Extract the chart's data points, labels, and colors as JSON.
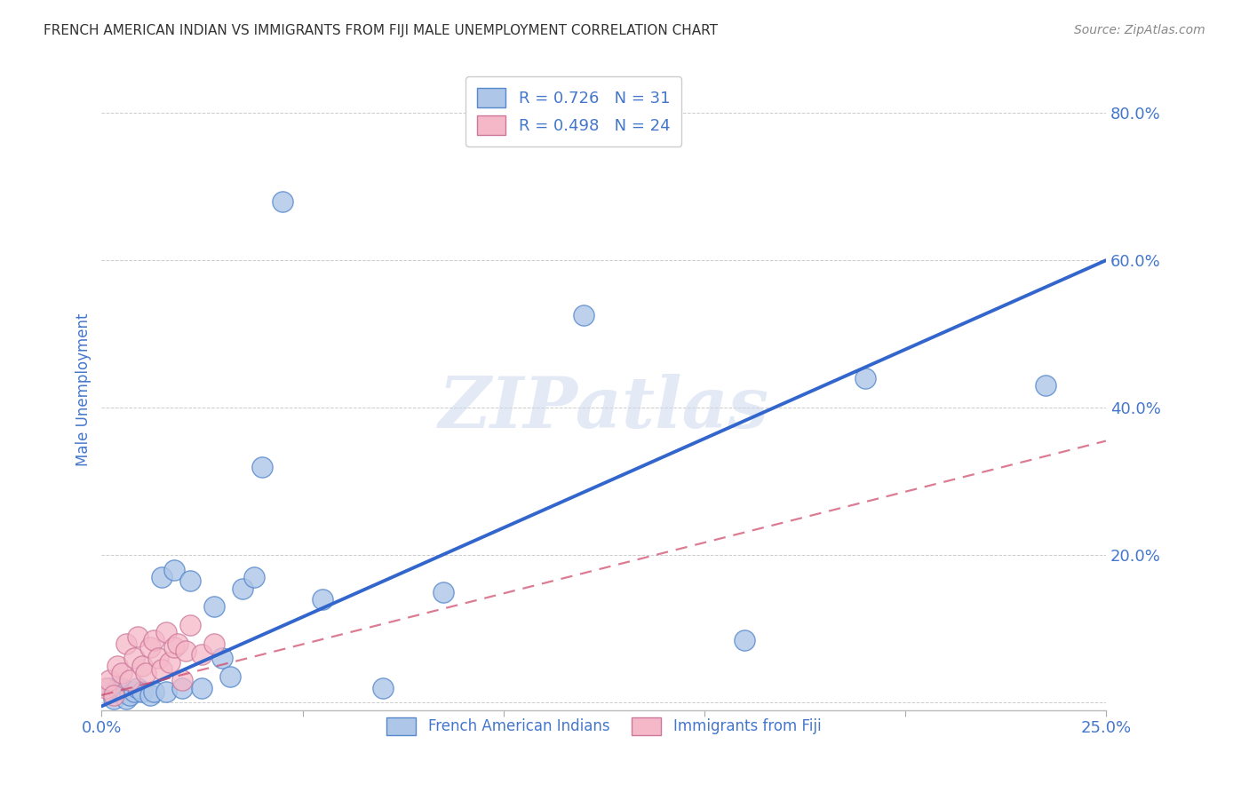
{
  "title": "FRENCH AMERICAN INDIAN VS IMMIGRANTS FROM FIJI MALE UNEMPLOYMENT CORRELATION CHART",
  "source": "Source: ZipAtlas.com",
  "ylabel": "Male Unemployment",
  "ytick_values": [
    0.0,
    0.2,
    0.4,
    0.6,
    0.8
  ],
  "ytick_labels": [
    "",
    "20.0%",
    "40.0%",
    "60.0%",
    "80.0%"
  ],
  "xlim": [
    0.0,
    0.25
  ],
  "ylim": [
    -0.01,
    0.86
  ],
  "blue_R": 0.726,
  "blue_N": 31,
  "pink_R": 0.498,
  "pink_N": 24,
  "blue_color": "#aec6e8",
  "blue_edge_color": "#5588cc",
  "blue_line_color": "#3366cc",
  "pink_color": "#f5b8c8",
  "pink_edge_color": "#cc7799",
  "pink_line_color": "#cc4466",
  "watermark_text": "ZIPatlas",
  "blue_points_x": [
    0.002,
    0.003,
    0.004,
    0.005,
    0.006,
    0.007,
    0.008,
    0.009,
    0.01,
    0.012,
    0.013,
    0.015,
    0.016,
    0.018,
    0.02,
    0.022,
    0.025,
    0.028,
    0.03,
    0.032,
    0.035,
    0.038,
    0.04,
    0.045,
    0.055,
    0.07,
    0.085,
    0.12,
    0.16,
    0.19,
    0.235
  ],
  "blue_points_y": [
    0.02,
    0.005,
    0.02,
    0.02,
    0.005,
    0.01,
    0.015,
    0.02,
    0.015,
    0.01,
    0.015,
    0.17,
    0.015,
    0.18,
    0.02,
    0.165,
    0.02,
    0.13,
    0.06,
    0.035,
    0.155,
    0.17,
    0.32,
    0.68,
    0.14,
    0.02,
    0.15,
    0.525,
    0.085,
    0.44,
    0.43
  ],
  "pink_points_x": [
    0.001,
    0.002,
    0.003,
    0.004,
    0.005,
    0.006,
    0.007,
    0.008,
    0.009,
    0.01,
    0.011,
    0.012,
    0.013,
    0.014,
    0.015,
    0.016,
    0.017,
    0.018,
    0.019,
    0.02,
    0.021,
    0.022,
    0.025,
    0.028
  ],
  "pink_points_y": [
    0.02,
    0.03,
    0.01,
    0.05,
    0.04,
    0.08,
    0.03,
    0.06,
    0.09,
    0.05,
    0.04,
    0.075,
    0.085,
    0.06,
    0.045,
    0.095,
    0.055,
    0.075,
    0.08,
    0.03,
    0.07,
    0.105,
    0.065,
    0.08
  ],
  "blue_line_x0": 0.0,
  "blue_line_y0": -0.005,
  "blue_line_x1": 0.25,
  "blue_line_y1": 0.6,
  "pink_line_x0": 0.0,
  "pink_line_y0": 0.01,
  "pink_line_x1": 0.25,
  "pink_line_y1": 0.355,
  "legend_label_blue": "French American Indians",
  "legend_label_pink": "Immigrants from Fiji",
  "title_color": "#333333",
  "axis_color": "#4477cc",
  "tick_color": "#4477cc",
  "source_color": "#888888"
}
